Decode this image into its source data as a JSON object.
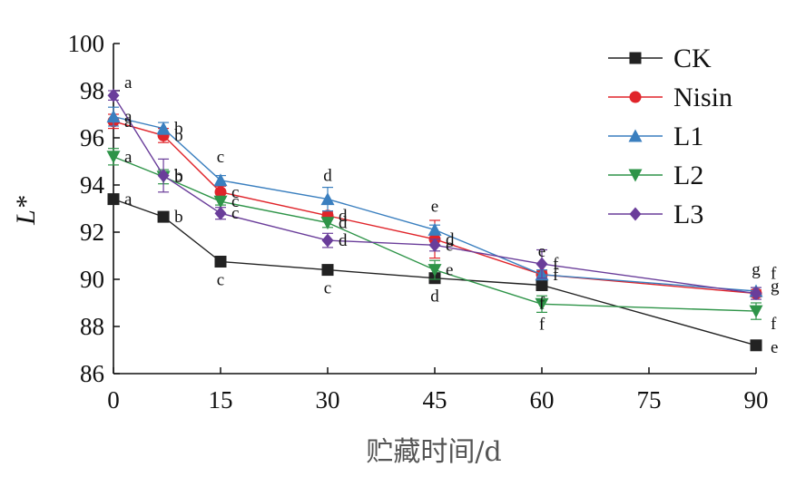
{
  "chart_data": {
    "type": "line",
    "title": "",
    "xlabel": "贮藏时间/d",
    "ylabel": "L*",
    "xlim": [
      0,
      90
    ],
    "ylim": [
      86,
      100
    ],
    "xticks": [
      "0",
      "15",
      "30",
      "45",
      "60",
      "75",
      "90"
    ],
    "yticks": [
      "86",
      "88",
      "90",
      "92",
      "94",
      "96",
      "98",
      "100"
    ],
    "x": [
      0,
      7,
      15,
      30,
      45,
      60,
      90
    ],
    "legend_position": "top-right",
    "series": [
      {
        "name": "CK",
        "color": "#222222",
        "marker": "square",
        "values": [
          93.4,
          92.65,
          90.75,
          90.4,
          90.05,
          89.75,
          87.2
        ],
        "errors": [
          0.15,
          0.1,
          0.1,
          0.1,
          0.15,
          0.15,
          0.1
        ],
        "labels": [
          "a",
          "b",
          "c",
          "c",
          "d",
          "f",
          "e"
        ]
      },
      {
        "name": "Nisin",
        "color": "#e0242a",
        "marker": "circle",
        "values": [
          96.7,
          96.1,
          93.7,
          92.7,
          91.7,
          90.2,
          89.4
        ],
        "errors": [
          0.3,
          0.3,
          0.25,
          0.15,
          0.8,
          0.15,
          0.15
        ],
        "labels": [
          "a",
          "b",
          "c",
          "d",
          "d",
          "f",
          "g"
        ]
      },
      {
        "name": "L1",
        "color": "#3a7fbf",
        "marker": "triangle-up",
        "values": [
          96.9,
          96.4,
          94.2,
          93.4,
          92.1,
          90.2,
          89.5
        ],
        "errors": [
          0.4,
          0.25,
          0.2,
          0.5,
          0.2,
          0.2,
          0.15
        ],
        "labels": [
          "a",
          "b",
          "c",
          "d",
          "e",
          "e",
          "g"
        ]
      },
      {
        "name": "L2",
        "color": "#2e9448",
        "marker": "triangle-down",
        "values": [
          95.2,
          94.35,
          93.3,
          92.4,
          90.4,
          88.95,
          88.65
        ],
        "errors": [
          0.35,
          0.3,
          0.15,
          0.2,
          0.4,
          0.35,
          0.35
        ],
        "labels": [
          "a",
          "b",
          "c",
          "d",
          "e",
          "f",
          "f"
        ]
      },
      {
        "name": "L3",
        "color": "#6a3d9a",
        "marker": "diamond",
        "values": [
          97.8,
          94.4,
          92.8,
          91.65,
          91.45,
          90.65,
          89.4
        ],
        "errors": [
          0.2,
          0.7,
          0.25,
          0.3,
          0.25,
          0.6,
          0.25
        ],
        "labels": [
          "a",
          "b",
          "c",
          "d",
          "e",
          "f",
          "f"
        ]
      }
    ]
  }
}
